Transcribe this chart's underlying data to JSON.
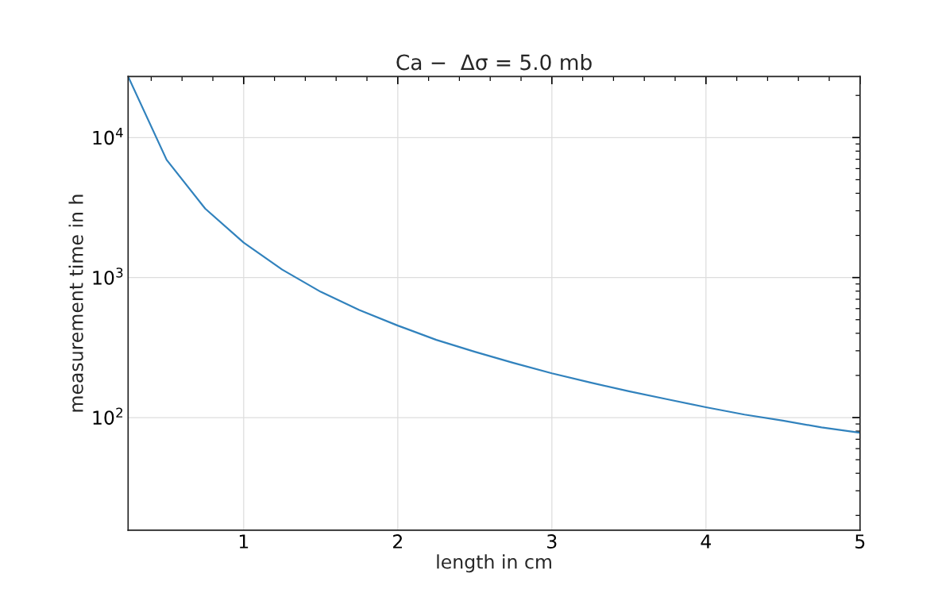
{
  "chart_data": {
    "type": "line",
    "title": "Ca −  Δσ = 5.0 mb",
    "xlabel": "length in cm",
    "ylabel": "measurement time in h",
    "x": [
      0.25,
      0.5,
      0.75,
      1,
      1.25,
      1.5,
      1.75,
      2,
      2.25,
      2.5,
      2.75,
      3,
      3.25,
      3.5,
      3.75,
      4,
      4.25,
      4.5,
      4.75,
      5
    ],
    "series": [
      {
        "color": "#3182bd",
        "values": [
          27300,
          6930,
          3110,
          1775,
          1140,
          791,
          586,
          454,
          359,
          295,
          246,
          207,
          178,
          154,
          135,
          118.5,
          105,
          95,
          85,
          78
        ]
      }
    ],
    "log": "y",
    "xlim": [
      0.25,
      5
    ],
    "xticks": [
      1,
      2,
      3,
      4,
      5
    ],
    "ylim": [
      15.7,
      27300
    ],
    "yticks": [
      {
        "value": 100,
        "label": "10$^{2}$"
      },
      {
        "value": 1000,
        "label": "10$^{3}$"
      },
      {
        "value": 10000,
        "label": "10$^{4}$"
      }
    ],
    "grid": true,
    "marker": "none",
    "line_style": "solid"
  }
}
